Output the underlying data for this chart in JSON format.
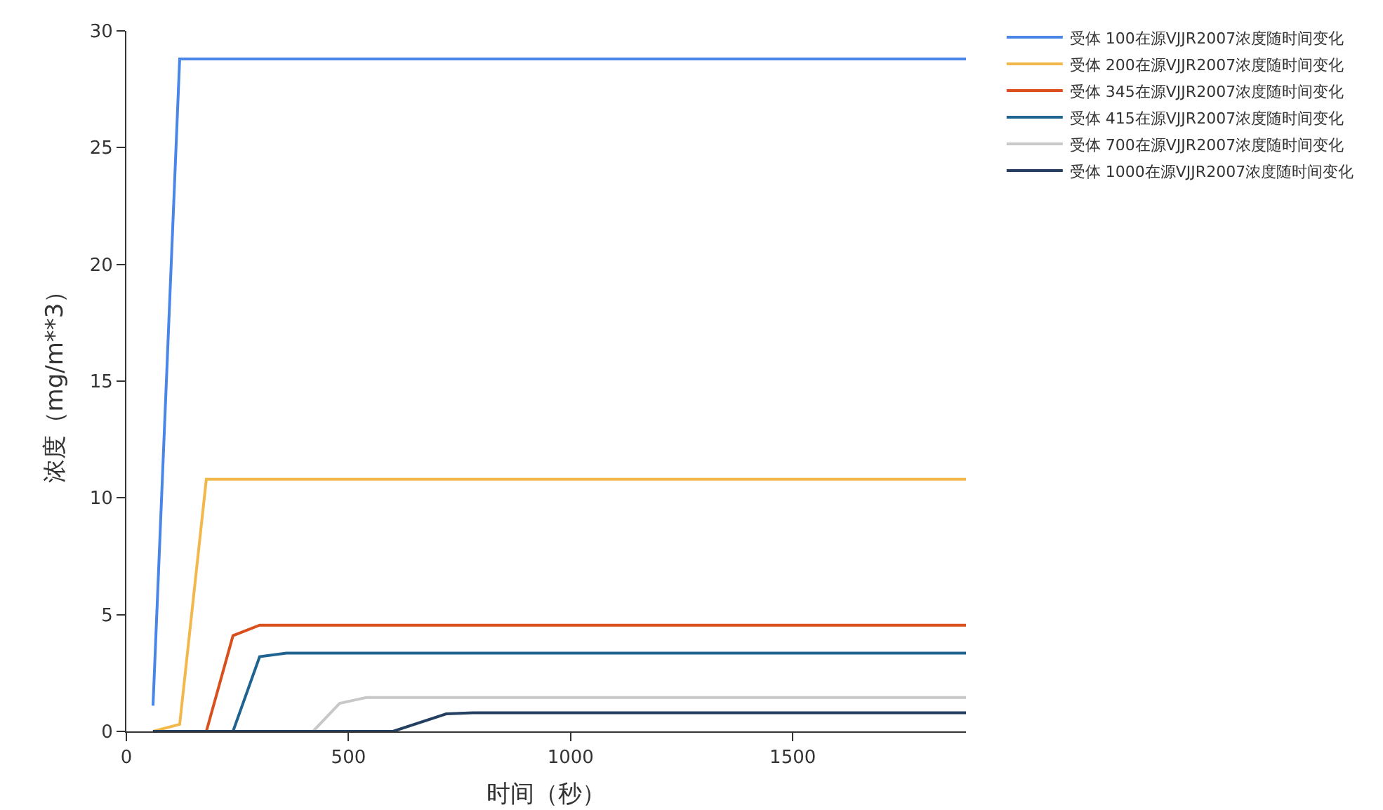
{
  "chart_data": {
    "type": "line",
    "xlabel": "时间（秒）",
    "ylabel": "浓度（mg/m**3）",
    "xlim": [
      0,
      1890
    ],
    "ylim": [
      0,
      30
    ],
    "xticks": [
      0,
      500,
      1000,
      1500
    ],
    "yticks": [
      0,
      5,
      10,
      15,
      20,
      25,
      30
    ],
    "grid": false,
    "legend": "top right",
    "marker": "none",
    "line_style": "solid",
    "series": [
      {
        "name": "受体 100在源VJJR2007浓度随时间变化",
        "color": "#4a86e8",
        "x": [
          60,
          120,
          1890
        ],
        "values": [
          1.1,
          28.8,
          28.8
        ]
      },
      {
        "name": "受体 200在源VJJR2007浓度随时间变化",
        "color": "#f2b84b",
        "x": [
          60,
          120,
          180,
          1890
        ],
        "values": [
          0,
          0.3,
          10.8,
          10.8
        ]
      },
      {
        "name": "受体 345在源VJJR2007浓度随时间变化",
        "color": "#d9501e",
        "x": [
          60,
          180,
          240,
          300,
          1890
        ],
        "values": [
          0,
          0,
          4.1,
          4.55,
          4.55
        ]
      },
      {
        "name": "受体 415在源VJJR2007浓度随时间变化",
        "color": "#1f6391",
        "x": [
          60,
          240,
          300,
          360,
          1890
        ],
        "values": [
          0,
          0,
          3.2,
          3.35,
          3.35
        ]
      },
      {
        "name": "受体 700在源VJJR2007浓度随时间变化",
        "color": "#c8c8c8",
        "x": [
          60,
          420,
          480,
          540,
          1890
        ],
        "values": [
          0,
          0,
          1.2,
          1.45,
          1.45
        ]
      },
      {
        "name": "受体 1000在源VJJR2007浓度随时间变化",
        "color": "#243f60",
        "x": [
          60,
          600,
          720,
          780,
          1890
        ],
        "values": [
          0,
          0,
          0.75,
          0.8,
          0.8
        ]
      }
    ]
  }
}
